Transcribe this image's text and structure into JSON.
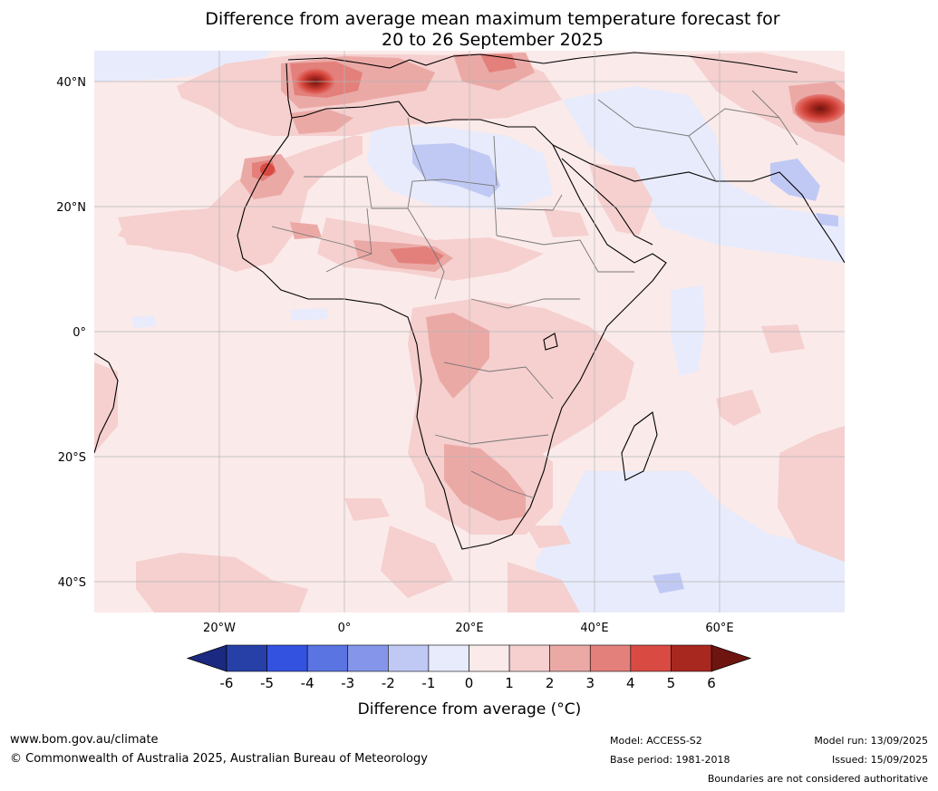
{
  "title_line1": "Difference from average mean maximum temperature forecast for",
  "title_line2": "20 to 26 September 2025",
  "lat_labels": [
    "40°N",
    "20°N",
    "0°",
    "20°S",
    "40°S"
  ],
  "lon_labels": [
    "20°W",
    "0°",
    "20°E",
    "40°E",
    "60°E"
  ],
  "colorbar": {
    "label": "Difference from average (°C)",
    "ticks": [
      "-6",
      "-5",
      "-4",
      "-3",
      "-2",
      "-1",
      "0",
      "1",
      "2",
      "3",
      "4",
      "5",
      "6"
    ],
    "colors": [
      "#2740a8",
      "#3352e0",
      "#5a74e2",
      "#8596ea",
      "#c0c9f4",
      "#e8ebfb",
      "#fbeaea",
      "#f5d0cf",
      "#eba9a6",
      "#e3807b",
      "#d94b42",
      "#a8281f"
    ],
    "under_color": "#1b2a80",
    "over_color": "#6e150f"
  },
  "footer": {
    "url": "www.bom.gov.au/climate",
    "copyright": "© Commonwealth of Australia 2025, Australian Bureau of Meteorology",
    "model": "Model: ACCESS-S2",
    "base_period": "Base period: 1981-2018",
    "model_run": "Model run: 13/09/2025",
    "issued": "Issued: 15/09/2025",
    "disclaimer": "Boundaries are not considered authoritative"
  }
}
